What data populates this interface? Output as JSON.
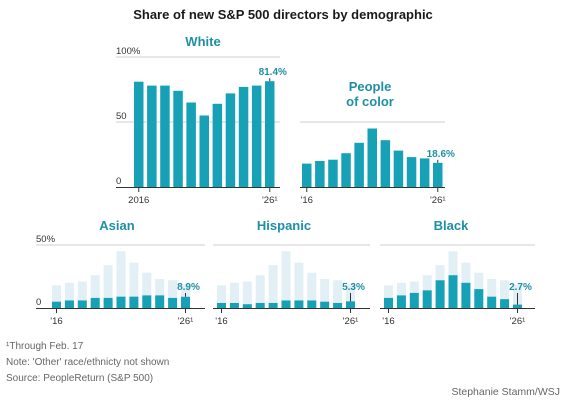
{
  "title": "Share of new S&P 500 directors by demographic",
  "notes": {
    "footnote": "¹Through Feb. 17",
    "note": "Note: 'Other' race/ethnicty not shown",
    "source": "Source: PeopleReturn (S&P 500)",
    "credit": "Stephanie Stamm/WSJ"
  },
  "colors": {
    "bar": "#16a1b6",
    "background_bar": "#e2eff5",
    "title": "#1f8fa6"
  },
  "chart_data": [
    {
      "type": "bar",
      "title": "White",
      "x": [
        2016,
        2017,
        2018,
        2019,
        2020,
        2021,
        2022,
        2023,
        2024,
        2025,
        2026
      ],
      "values": [
        81,
        78,
        78,
        74,
        65,
        55,
        64,
        72,
        77,
        78,
        81.4
      ],
      "ylim": [
        0,
        100
      ],
      "yticks": [
        "100%",
        "50",
        "0"
      ],
      "xtick_labels": [
        "2016",
        "'26¹"
      ],
      "end_label": "81.4%"
    },
    {
      "type": "bar",
      "title": "People\nof color",
      "x": [
        2016,
        2017,
        2018,
        2019,
        2020,
        2021,
        2022,
        2023,
        2024,
        2025,
        2026
      ],
      "values": [
        18,
        20,
        21,
        26,
        34,
        45,
        36,
        28,
        23,
        22,
        18.6
      ],
      "ylim": [
        0,
        100
      ],
      "xtick_labels": [
        "'16",
        "'26¹"
      ],
      "end_label": "18.6%"
    },
    {
      "type": "bar",
      "title": "Asian",
      "x": [
        2016,
        2017,
        2018,
        2019,
        2020,
        2021,
        2022,
        2023,
        2024,
        2025,
        2026
      ],
      "values": [
        5,
        6,
        6,
        8,
        8,
        9,
        9,
        10,
        10,
        8,
        8.9
      ],
      "background_values": [
        18,
        20,
        21,
        26,
        34,
        45,
        36,
        28,
        23,
        22,
        18.6
      ],
      "ylim": [
        0,
        50
      ],
      "yticks": [
        "50%",
        "0"
      ],
      "xtick_labels": [
        "'16",
        "'26¹"
      ],
      "end_label": "8.9%"
    },
    {
      "type": "bar",
      "title": "Hispanic",
      "x": [
        2016,
        2017,
        2018,
        2019,
        2020,
        2021,
        2022,
        2023,
        2024,
        2025,
        2026
      ],
      "values": [
        4,
        4,
        3,
        4,
        4,
        6,
        6,
        6,
        5,
        4,
        5.3
      ],
      "background_values": [
        18,
        20,
        21,
        26,
        34,
        45,
        36,
        28,
        23,
        22,
        18.6
      ],
      "ylim": [
        0,
        50
      ],
      "xtick_labels": [
        "'16",
        "'26¹"
      ],
      "end_label": "5.3%"
    },
    {
      "type": "bar",
      "title": "Black",
      "x": [
        2016,
        2017,
        2018,
        2019,
        2020,
        2021,
        2022,
        2023,
        2024,
        2025,
        2026
      ],
      "values": [
        8,
        10,
        12,
        14,
        22,
        26,
        20,
        15,
        9,
        7,
        2.7
      ],
      "background_values": [
        18,
        20,
        21,
        26,
        34,
        45,
        36,
        28,
        23,
        22,
        18.6
      ],
      "ylim": [
        0,
        50
      ],
      "xtick_labels": [
        "'16",
        "'26¹"
      ],
      "end_label": "2.7%"
    }
  ]
}
